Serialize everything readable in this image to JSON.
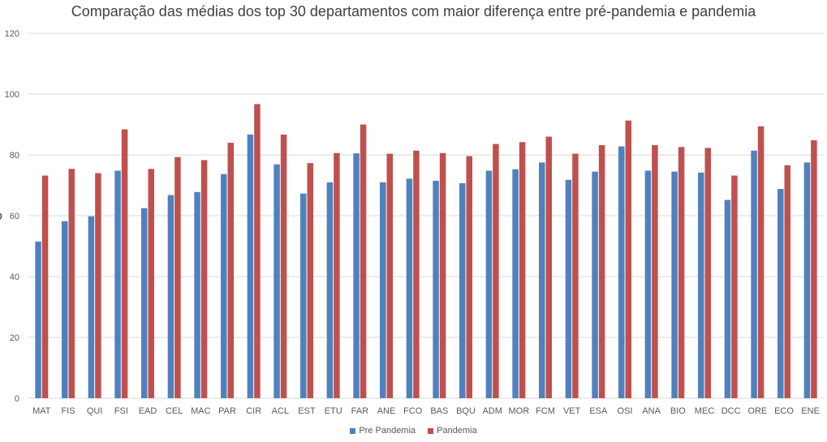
{
  "chart_data": {
    "type": "bar",
    "title": "Comparação das médias dos top 30 departamentos com maior diferença entre pré-pandemia e pandemia",
    "ylabel": "",
    "xlabel": "",
    "ylim": [
      0,
      120
    ],
    "yticks": [
      "0",
      "20",
      "40",
      "60",
      "80",
      "100",
      "120"
    ],
    "grid": true,
    "legend_position": "bottom",
    "categories": [
      "MAT",
      "FIS",
      "QUI",
      "FSI",
      "EAD",
      "CEL",
      "MAC",
      "PAR",
      "CIR",
      "ACL",
      "EST",
      "ETU",
      "FAR",
      "ANE",
      "FCO",
      "BAS",
      "BQU",
      "ADM",
      "MOR",
      "FCM",
      "VET",
      "ESA",
      "OSI",
      "ANA",
      "BIO",
      "MEC",
      "DCC",
      "ORE",
      "ECO",
      "ENE"
    ],
    "series": [
      {
        "name": "Pre Pandemia",
        "color": "#4f81bd",
        "values": [
          51.5,
          58.2,
          59.8,
          74.8,
          62.5,
          66.8,
          67.8,
          73.7,
          86.7,
          76.9,
          67.3,
          71.0,
          80.5,
          71.0,
          72.2,
          71.5,
          70.7,
          74.8,
          75.3,
          77.5,
          71.8,
          74.5,
          82.8,
          74.8,
          74.5,
          74.2,
          65.2,
          81.4,
          68.8,
          77.5
        ]
      },
      {
        "name": "Pandemia",
        "color": "#c0504d",
        "values": [
          73.2,
          75.4,
          74.0,
          88.4,
          75.4,
          79.3,
          78.3,
          84.0,
          96.7,
          86.7,
          77.3,
          80.6,
          90.0,
          80.4,
          81.4,
          80.6,
          79.6,
          83.6,
          84.2,
          86.0,
          80.4,
          83.2,
          91.3,
          83.2,
          82.6,
          82.3,
          73.2,
          89.4,
          76.6,
          84.8
        ]
      }
    ]
  }
}
